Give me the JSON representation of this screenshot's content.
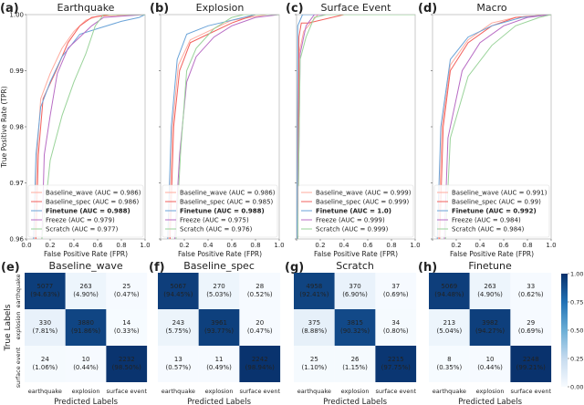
{
  "chart_data": [
    {
      "type": "line",
      "label": "(a)",
      "title": "Earthquake",
      "xlabel": "False Positive Rate (FPR)",
      "ylabel": "True Positive Rate (TPR)",
      "xlim": [
        0,
        1
      ],
      "ylim": [
        0.96,
        1.0
      ],
      "xticks": [
        "0.0",
        "0.2",
        "0.4",
        "0.6",
        "0.8",
        "1.0"
      ],
      "yticks": [
        "0.96",
        "0.97",
        "0.98",
        "0.99",
        "1.00"
      ],
      "legend_position": "lower-right",
      "series": [
        {
          "name": "Baseline_wave",
          "auc": "0.986",
          "points": [
            [
              0.07,
              0.96
            ],
            [
              0.09,
              0.975
            ],
            [
              0.12,
              0.985
            ],
            [
              0.2,
              0.9895
            ],
            [
              0.3,
              0.994
            ],
            [
              0.4,
              0.997
            ],
            [
              0.5,
              0.999
            ],
            [
              0.6,
              0.9997
            ],
            [
              1,
              1
            ]
          ]
        },
        {
          "name": "Baseline_spec",
          "auc": "0.986",
          "points": [
            [
              0.08,
              0.96
            ],
            [
              0.1,
              0.975
            ],
            [
              0.14,
              0.985
            ],
            [
              0.25,
              0.99
            ],
            [
              0.35,
              0.995
            ],
            [
              0.45,
              0.998
            ],
            [
              0.55,
              0.9995
            ],
            [
              0.7,
              1
            ],
            [
              1,
              1
            ]
          ]
        },
        {
          "name": "Finetune",
          "auc": "0.988",
          "bold": true,
          "points": [
            [
              0.06,
              0.96
            ],
            [
              0.08,
              0.975
            ],
            [
              0.12,
              0.9835
            ],
            [
              0.2,
              0.988
            ],
            [
              0.3,
              0.9925
            ],
            [
              0.45,
              0.9965
            ],
            [
              0.6,
              0.9975
            ],
            [
              0.8,
              0.9988
            ],
            [
              0.95,
              0.9995
            ],
            [
              1,
              1
            ]
          ]
        },
        {
          "name": "Freeze",
          "auc": "0.979",
          "points": [
            [
              0.13,
              0.96
            ],
            [
              0.15,
              0.975
            ],
            [
              0.2,
              0.982
            ],
            [
              0.26,
              0.9895
            ],
            [
              0.35,
              0.994
            ],
            [
              0.45,
              0.996
            ],
            [
              0.55,
              0.998
            ],
            [
              0.65,
              0.9995
            ],
            [
              1,
              1
            ]
          ]
        },
        {
          "name": "Scratch",
          "auc": "0.977",
          "points": [
            [
              0.13,
              0.96
            ],
            [
              0.2,
              0.974
            ],
            [
              0.3,
              0.982
            ],
            [
              0.4,
              0.988
            ],
            [
              0.5,
              0.993
            ],
            [
              0.58,
              0.998
            ],
            [
              0.65,
              1
            ],
            [
              1,
              1
            ]
          ]
        }
      ]
    },
    {
      "type": "line",
      "label": "(b)",
      "title": "Explosion",
      "xlabel": "False Positive Rate (FPR)",
      "xlim": [
        0,
        1
      ],
      "ylim": [
        0.96,
        1.0
      ],
      "xticks": [
        "",
        "0.2",
        "0.4",
        "0.6",
        "0.8",
        "1.0"
      ],
      "legend_position": "lower-right",
      "series": [
        {
          "name": "Baseline_wave",
          "auc": "0.986",
          "points": [
            [
              0.07,
              0.96
            ],
            [
              0.1,
              0.98
            ],
            [
              0.15,
              0.991
            ],
            [
              0.25,
              0.9955
            ],
            [
              0.4,
              0.997
            ],
            [
              0.6,
              0.999
            ],
            [
              0.9,
              1
            ],
            [
              1,
              1
            ]
          ]
        },
        {
          "name": "Baseline_spec",
          "auc": "0.985",
          "points": [
            [
              0.08,
              0.96
            ],
            [
              0.11,
              0.98
            ],
            [
              0.16,
              0.99
            ],
            [
              0.25,
              0.995
            ],
            [
              0.4,
              0.9965
            ],
            [
              0.6,
              0.9985
            ],
            [
              0.8,
              1
            ],
            [
              1,
              1
            ]
          ]
        },
        {
          "name": "Finetune",
          "auc": "0.988",
          "bold": true,
          "points": [
            [
              0.06,
              0.96
            ],
            [
              0.09,
              0.98
            ],
            [
              0.14,
              0.992
            ],
            [
              0.22,
              0.9965
            ],
            [
              0.4,
              0.998
            ],
            [
              0.6,
              0.999
            ],
            [
              0.8,
              1
            ],
            [
              1,
              1
            ]
          ]
        },
        {
          "name": "Freeze",
          "auc": "0.975",
          "points": [
            [
              0.12,
              0.96
            ],
            [
              0.16,
              0.975
            ],
            [
              0.22,
              0.988
            ],
            [
              0.3,
              0.9925
            ],
            [
              0.45,
              0.996
            ],
            [
              0.6,
              0.998
            ],
            [
              0.8,
              0.9995
            ],
            [
              1,
              1
            ]
          ]
        },
        {
          "name": "Scratch",
          "auc": "0.976",
          "points": [
            [
              0.13,
              0.96
            ],
            [
              0.17,
              0.976
            ],
            [
              0.22,
              0.99
            ],
            [
              0.3,
              0.994
            ],
            [
              0.45,
              0.9975
            ],
            [
              0.6,
              0.9995
            ],
            [
              0.7,
              1
            ],
            [
              1,
              1
            ]
          ]
        }
      ]
    },
    {
      "type": "line",
      "label": "(c)",
      "title": "Surface Event",
      "xlabel": "False Positive Rate (FPR)",
      "xlim": [
        0,
        1
      ],
      "ylim": [
        0.96,
        1.0
      ],
      "xticks": [
        "",
        "0.2",
        "0.4",
        "0.6",
        "0.8",
        "1.0"
      ],
      "legend_position": "lower-right",
      "series": [
        {
          "name": "Baseline_wave",
          "auc": "0.999",
          "points": [
            [
              0.01,
              0.96
            ],
            [
              0.02,
              0.993
            ],
            [
              0.06,
              0.997
            ],
            [
              0.12,
              0.9985
            ],
            [
              0.18,
              1
            ],
            [
              1,
              1
            ]
          ]
        },
        {
          "name": "Baseline_spec",
          "auc": "0.999",
          "points": [
            [
              0.01,
              0.96
            ],
            [
              0.02,
              0.996
            ],
            [
              0.04,
              0.9985
            ],
            [
              0.1,
              0.9985
            ],
            [
              0.4,
              1
            ],
            [
              1,
              1
            ]
          ]
        },
        {
          "name": "Finetune",
          "auc": "1.0",
          "bold": true,
          "points": [
            [
              0.005,
              0.96
            ],
            [
              0.01,
              0.998
            ],
            [
              0.05,
              1
            ],
            [
              1,
              1
            ]
          ]
        },
        {
          "name": "Freeze",
          "auc": "0.999",
          "points": [
            [
              0.01,
              0.96
            ],
            [
              0.03,
              0.993
            ],
            [
              0.08,
              0.998
            ],
            [
              0.15,
              1
            ],
            [
              1,
              1
            ]
          ]
        },
        {
          "name": "Scratch",
          "auc": "0.999",
          "points": [
            [
              0.01,
              0.96
            ],
            [
              0.03,
              0.992
            ],
            [
              0.08,
              0.996
            ],
            [
              0.15,
              0.9995
            ],
            [
              0.25,
              1
            ],
            [
              1,
              1
            ]
          ]
        }
      ]
    },
    {
      "type": "line",
      "label": "(d)",
      "title": "Macro",
      "xlabel": "False Positive Rate (FPR)",
      "xlim": [
        0,
        1
      ],
      "ylim": [
        0.96,
        1.0
      ],
      "xticks": [
        "",
        "0.2",
        "0.4",
        "0.6",
        "0.8",
        "1.0"
      ],
      "legend_position": "lower-right",
      "series": [
        {
          "name": "Baseline_wave",
          "auc": "0.991",
          "points": [
            [
              0.05,
              0.96
            ],
            [
              0.08,
              0.98
            ],
            [
              0.15,
              0.991
            ],
            [
              0.3,
              0.9955
            ],
            [
              0.5,
              0.9985
            ],
            [
              0.7,
              0.9995
            ],
            [
              1,
              1
            ]
          ]
        },
        {
          "name": "Baseline_spec",
          "auc": "0.99",
          "points": [
            [
              0.06,
              0.96
            ],
            [
              0.09,
              0.98
            ],
            [
              0.15,
              0.99
            ],
            [
              0.3,
              0.995
            ],
            [
              0.5,
              0.998
            ],
            [
              0.7,
              0.9995
            ],
            [
              1,
              1
            ]
          ]
        },
        {
          "name": "Finetune",
          "auc": "0.992",
          "bold": true,
          "points": [
            [
              0.04,
              0.96
            ],
            [
              0.07,
              0.98
            ],
            [
              0.15,
              0.992
            ],
            [
              0.3,
              0.996
            ],
            [
              0.5,
              0.998
            ],
            [
              0.75,
              0.9995
            ],
            [
              1,
              1
            ]
          ]
        },
        {
          "name": "Freeze",
          "auc": "0.984",
          "points": [
            [
              0.1,
              0.96
            ],
            [
              0.13,
              0.978
            ],
            [
              0.25,
              0.99
            ],
            [
              0.4,
              0.995
            ],
            [
              0.6,
              0.998
            ],
            [
              0.8,
              0.9995
            ],
            [
              1,
              1
            ]
          ]
        },
        {
          "name": "Scratch",
          "auc": "0.984",
          "points": [
            [
              0.11,
              0.96
            ],
            [
              0.15,
              0.978
            ],
            [
              0.3,
              0.989
            ],
            [
              0.5,
              0.9945
            ],
            [
              0.7,
              0.998
            ],
            [
              0.9,
              0.9995
            ],
            [
              1,
              1
            ]
          ]
        }
      ]
    },
    {
      "type": "heatmap",
      "label": "(e)",
      "title": "Baseline_wave",
      "xlabel": "Predicted Labels",
      "ylabel": "True Labels",
      "classes": [
        "earthquake",
        "explosion",
        "surface event"
      ],
      "counts": [
        [
          5077,
          263,
          25
        ],
        [
          330,
          3880,
          14
        ],
        [
          24,
          10,
          2232
        ]
      ],
      "percents": [
        "94.63%",
        "4.90%",
        "0.47%",
        "7.81%",
        "91.86%",
        "0.33%",
        "1.06%",
        "0.44%",
        "98.50%"
      ]
    },
    {
      "type": "heatmap",
      "label": "(f)",
      "title": "Baseline_spec",
      "xlabel": "Predicted Labels",
      "classes": [
        "earthquake",
        "explosion",
        "surface event"
      ],
      "counts": [
        [
          5067,
          270,
          28
        ],
        [
          243,
          3961,
          20
        ],
        [
          13,
          11,
          2242
        ]
      ],
      "percents": [
        "94.45%",
        "5.03%",
        "0.52%",
        "5.75%",
        "93.77%",
        "0.47%",
        "0.57%",
        "0.49%",
        "98.94%"
      ]
    },
    {
      "type": "heatmap",
      "label": "(g)",
      "title": "Scratch",
      "xlabel": "Predicted Labels",
      "classes": [
        "earthquake",
        "explosion",
        "surface event"
      ],
      "counts": [
        [
          4958,
          370,
          37
        ],
        [
          375,
          3815,
          34
        ],
        [
          25,
          26,
          2215
        ]
      ],
      "percents": [
        "92.41%",
        "6.90%",
        "0.69%",
        "8.88%",
        "90.32%",
        "0.80%",
        "1.10%",
        "1.15%",
        "97.75%"
      ]
    },
    {
      "type": "heatmap",
      "label": "(h)",
      "title": "Finetune",
      "xlabel": "Predicted Labels",
      "classes": [
        "earthquake",
        "explosion",
        "surface event"
      ],
      "counts": [
        [
          5069,
          263,
          33
        ],
        [
          213,
          3982,
          29
        ],
        [
          8,
          10,
          2248
        ]
      ],
      "percents": [
        "94.48%",
        "4.90%",
        "0.62%",
        "5.04%",
        "94.27%",
        "0.69%",
        "0.35%",
        "0.44%",
        "99.21%"
      ],
      "colorbar": {
        "range": [
          0,
          1
        ],
        "ticks": [
          "0.00",
          "0.25",
          "0.50",
          "0.75",
          "1.00"
        ],
        "colormap": "Blues"
      }
    }
  ],
  "colors": {
    "Baseline_wave": "#ffab9e",
    "Baseline_spec": "#f2605c",
    "Finetune": "#6aa3d8",
    "Freeze": "#b86cc4",
    "Scratch": "#9ad39a"
  }
}
